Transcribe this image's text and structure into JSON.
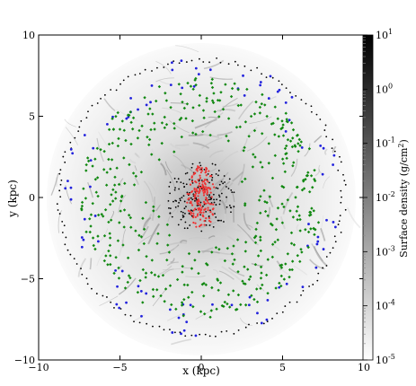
{
  "chart_data": {
    "type": "scatter",
    "title": "",
    "xlabel": "x  (kpc)",
    "ylabel": "y  (kpc)",
    "xlim": [
      -10,
      10
    ],
    "ylim": [
      -10,
      10
    ],
    "x_ticks": [
      -10,
      -5,
      0,
      5,
      10
    ],
    "y_ticks": [
      -10,
      -5,
      0,
      5,
      10
    ],
    "x_tick_labels": [
      "−10",
      "−5",
      "0",
      "5",
      "10"
    ],
    "y_tick_labels": [
      "−10",
      "−5",
      "0",
      "5",
      "10"
    ],
    "background": "grayscale surface density map of a disk galaxy",
    "colorbar": {
      "label": "Surface density (g/cm",
      "label_sup": "2",
      "label_close": ")",
      "scale": "log",
      "range": [
        1e-05,
        10
      ],
      "ticks": [
        {
          "base": "10",
          "exp": "1"
        },
        {
          "base": "10",
          "exp": "0"
        },
        {
          "base": "10",
          "exp": "-1"
        },
        {
          "base": "10",
          "exp": "-2"
        },
        {
          "base": "10",
          "exp": "-3"
        },
        {
          "base": "10",
          "exp": "-4"
        },
        {
          "base": "10",
          "exp": "-5"
        }
      ]
    },
    "series": [
      {
        "color": "#000000",
        "marker": "small-dot",
        "region": "outer ring r≈8.8 kpc and center r<2 kpc"
      },
      {
        "color": "#2222dd",
        "marker": "dot",
        "region": "outer region 6.5–8.7 kpc"
      },
      {
        "color": "#118811",
        "marker": "diamond",
        "region": "disk 2.5–7.5 kpc"
      },
      {
        "color": "#ee3333",
        "marker": "dot",
        "region": "central bar r<1.6 kpc"
      }
    ]
  }
}
